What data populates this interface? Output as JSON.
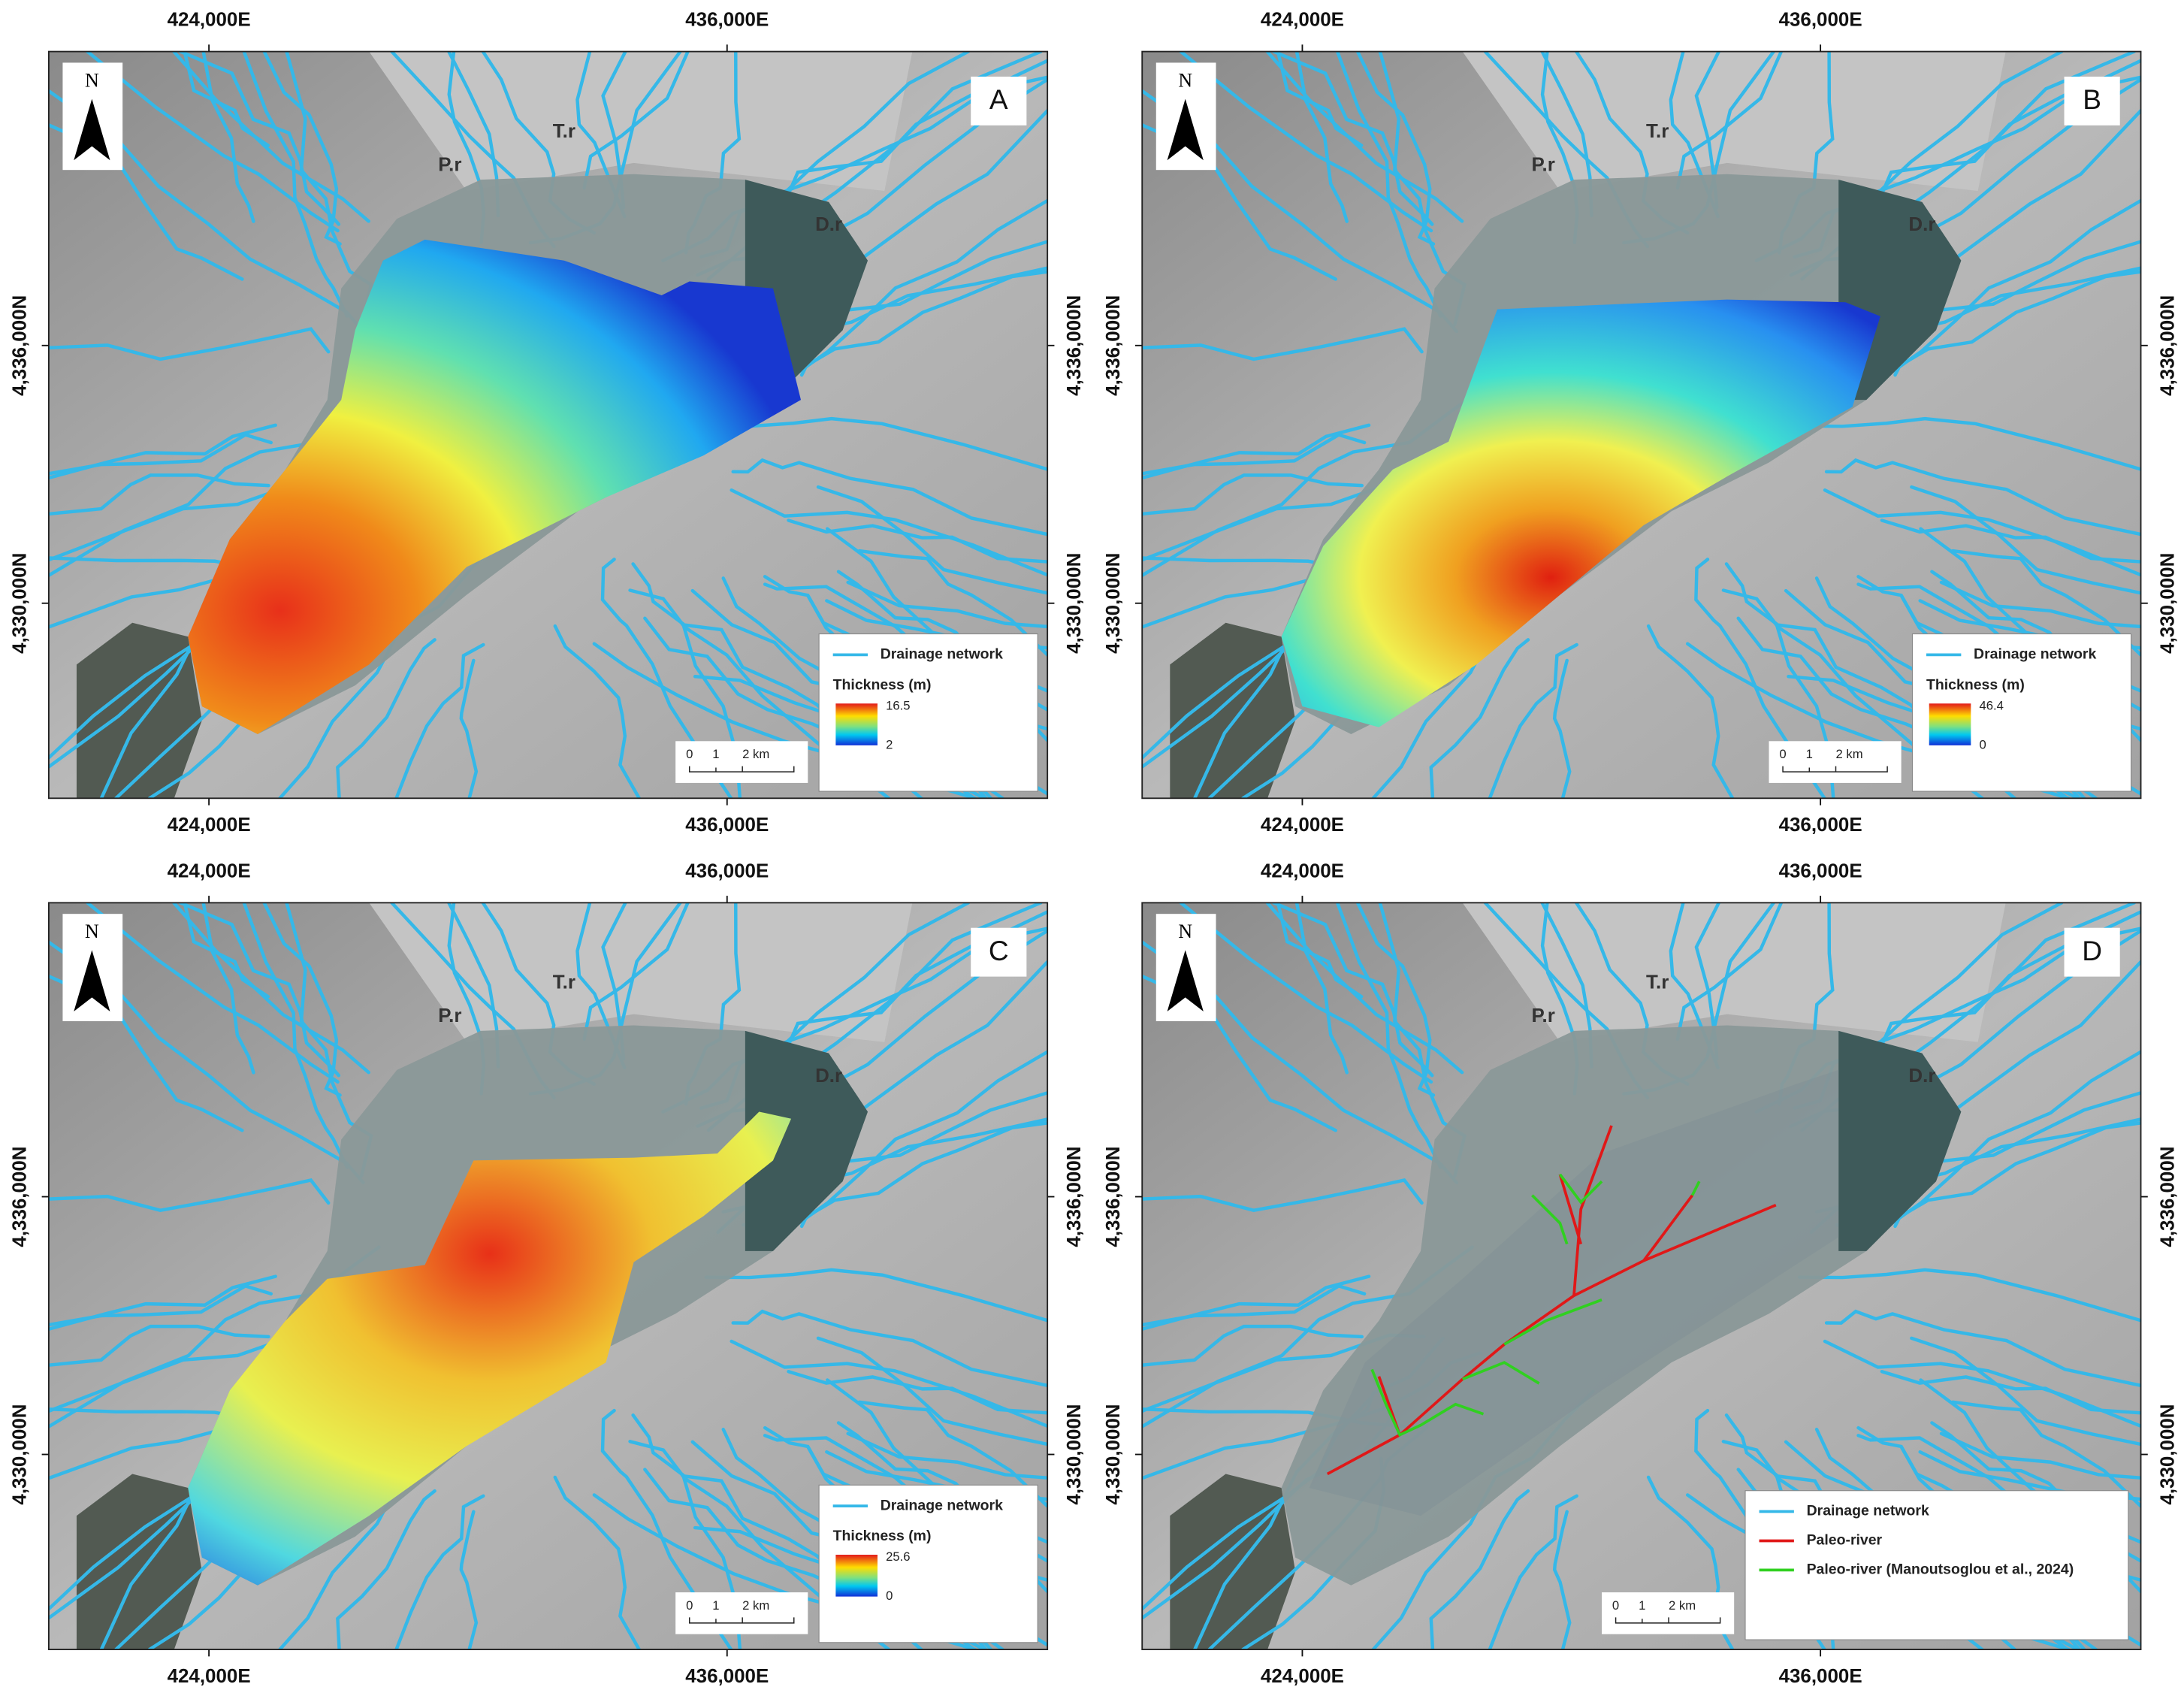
{
  "grid_labels": {
    "x": [
      "424,000E",
      "436,000E"
    ],
    "y": [
      "4,336,000N",
      "4,330,000N"
    ]
  },
  "north": "N",
  "rivers": [
    "P.r",
    "T.r",
    "D.r"
  ],
  "scale_bar": [
    "0",
    "1",
    "2 km"
  ],
  "panels": [
    {
      "label": "A",
      "legend": [
        "Drainage network"
      ],
      "thickness": {
        "title": "Thickness (m)",
        "max": 16.5,
        "min": 2
      }
    },
    {
      "label": "B",
      "legend": [
        "Drainage network"
      ],
      "thickness": {
        "title": "Thickness (m)",
        "max": 46.4,
        "min": 0
      }
    },
    {
      "label": "C",
      "legend": [
        "Drainage network"
      ],
      "thickness": {
        "title": "Thickness (m)",
        "max": 25.6,
        "min": 0
      }
    },
    {
      "label": "D",
      "legend": [
        "Drainage network",
        "Paleo-river",
        "Paleo-river (Manoutsoglou et al., 2024)"
      ]
    }
  ]
}
